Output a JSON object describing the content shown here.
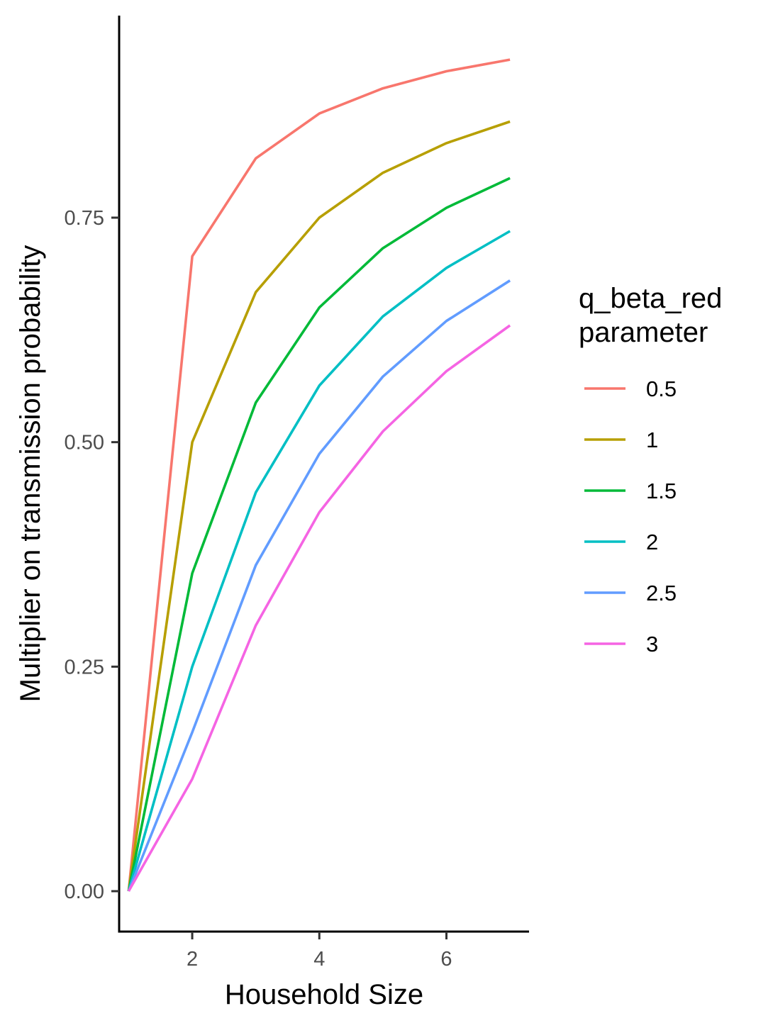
{
  "chart_data": {
    "type": "line",
    "xlabel": "Household Size",
    "ylabel": "Multiplier on transmission probability",
    "x": [
      1,
      2,
      3,
      4,
      5,
      6,
      7
    ],
    "xlim": [
      0.85,
      7.3
    ],
    "ylim": [
      -0.045,
      0.975
    ],
    "x_ticks": [
      2,
      4,
      6
    ],
    "x_tick_labels": [
      "2",
      "4",
      "6"
    ],
    "y_ticks": [
      0,
      0.25,
      0.5,
      0.75
    ],
    "y_tick_labels": [
      "0.00",
      "0.25",
      "0.50",
      "0.75"
    ],
    "grid": false,
    "legend": {
      "title_lines": [
        "q_beta_red",
        "parameter"
      ],
      "placement": "right"
    },
    "series": [
      {
        "name": "0.5",
        "color": "#F8766D",
        "values": [
          0,
          0.707,
          0.816,
          0.866,
          0.894,
          0.913,
          0.926
        ]
      },
      {
        "name": "1",
        "color": "#B79F00",
        "values": [
          0,
          0.5,
          0.667,
          0.75,
          0.8,
          0.833,
          0.857
        ]
      },
      {
        "name": "1.5",
        "color": "#00BA38",
        "values": [
          0,
          0.354,
          0.544,
          0.65,
          0.716,
          0.761,
          0.794
        ]
      },
      {
        "name": "2",
        "color": "#00BFC4",
        "values": [
          0,
          0.25,
          0.444,
          0.563,
          0.64,
          0.694,
          0.735
        ]
      },
      {
        "name": "2.5",
        "color": "#619CFF",
        "values": [
          0,
          0.177,
          0.363,
          0.487,
          0.573,
          0.635,
          0.68
        ]
      },
      {
        "name": "3",
        "color": "#F564E3",
        "values": [
          0,
          0.125,
          0.296,
          0.422,
          0.512,
          0.579,
          0.63
        ]
      }
    ]
  }
}
